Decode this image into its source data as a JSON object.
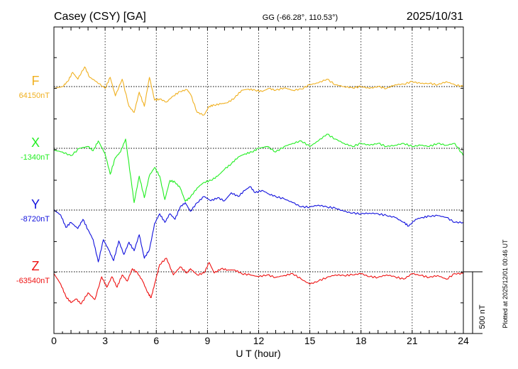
{
  "header": {
    "station": "Casey (CSY)  [GA]",
    "coords": "GG (-66.28°, 110.53°)",
    "date": "2025/10/31"
  },
  "footer": {
    "plotted": "Plotted at 2025/12/01 00:46 UT"
  },
  "chart_data": {
    "type": "line",
    "xlabel": "U T (hour)",
    "xlim": [
      0,
      24
    ],
    "xticks": [
      0,
      3,
      6,
      9,
      12,
      15,
      18,
      21,
      24
    ],
    "scale_label": "500 nT",
    "scale_nT": 500,
    "series": [
      {
        "name": "F",
        "baseline": "64150nT",
        "color": "#f0b020",
        "points": [
          [
            0,
            -15
          ],
          [
            0.5,
            0
          ],
          [
            0.8,
            40
          ],
          [
            1.1,
            115
          ],
          [
            1.4,
            60
          ],
          [
            1.8,
            160
          ],
          [
            2.1,
            75
          ],
          [
            2.5,
            40
          ],
          [
            3.0,
            -15
          ],
          [
            3.3,
            75
          ],
          [
            3.6,
            -75
          ],
          [
            4.0,
            60
          ],
          [
            4.4,
            -160
          ],
          [
            4.7,
            -210
          ],
          [
            5.0,
            -45
          ],
          [
            5.3,
            -160
          ],
          [
            5.6,
            75
          ],
          [
            5.9,
            -110
          ],
          [
            6.2,
            -100
          ],
          [
            6.6,
            -125
          ],
          [
            7.0,
            -75
          ],
          [
            7.4,
            -40
          ],
          [
            7.8,
            -25
          ],
          [
            8.0,
            -60
          ],
          [
            8.4,
            -210
          ],
          [
            8.8,
            -230
          ],
          [
            9.1,
            -160
          ],
          [
            9.4,
            -150
          ],
          [
            9.8,
            -140
          ],
          [
            10.2,
            -130
          ],
          [
            10.6,
            -90
          ],
          [
            11.0,
            -30
          ],
          [
            11.4,
            -20
          ],
          [
            11.8,
            -30
          ],
          [
            12.2,
            -40
          ],
          [
            12.6,
            -15
          ],
          [
            13.0,
            -30
          ],
          [
            13.5,
            -10
          ],
          [
            14.0,
            -30
          ],
          [
            14.5,
            -20
          ],
          [
            15.0,
            15
          ],
          [
            15.5,
            30
          ],
          [
            16.0,
            60
          ],
          [
            16.5,
            15
          ],
          [
            17.0,
            0
          ],
          [
            17.5,
            -10
          ],
          [
            18.0,
            0
          ],
          [
            18.5,
            -15
          ],
          [
            19.0,
            0
          ],
          [
            19.5,
            -15
          ],
          [
            20.0,
            15
          ],
          [
            20.5,
            20
          ],
          [
            21.0,
            40
          ],
          [
            21.5,
            25
          ],
          [
            22.0,
            25
          ],
          [
            22.5,
            15
          ],
          [
            23.0,
            40
          ],
          [
            23.5,
            15
          ],
          [
            24.0,
            0
          ]
        ]
      },
      {
        "name": "X",
        "baseline": "-1340nT",
        "color": "#22ee22",
        "points": [
          [
            0,
            -15
          ],
          [
            0.5,
            -30
          ],
          [
            1.0,
            -60
          ],
          [
            1.5,
            0
          ],
          [
            2.0,
            15
          ],
          [
            2.3,
            -20
          ],
          [
            2.6,
            60
          ],
          [
            3.0,
            -45
          ],
          [
            3.3,
            -210
          ],
          [
            3.6,
            -75
          ],
          [
            3.9,
            -30
          ],
          [
            4.2,
            75
          ],
          [
            4.5,
            -230
          ],
          [
            4.7,
            -440
          ],
          [
            5.0,
            -225
          ],
          [
            5.3,
            -400
          ],
          [
            5.6,
            -220
          ],
          [
            5.9,
            -155
          ],
          [
            6.2,
            -225
          ],
          [
            6.5,
            -415
          ],
          [
            6.8,
            -260
          ],
          [
            7.1,
            -275
          ],
          [
            7.4,
            -320
          ],
          [
            7.7,
            -430
          ],
          [
            8.0,
            -395
          ],
          [
            8.4,
            -320
          ],
          [
            8.8,
            -275
          ],
          [
            9.2,
            -260
          ],
          [
            9.6,
            -225
          ],
          [
            10.0,
            -170
          ],
          [
            10.4,
            -125
          ],
          [
            10.8,
            -70
          ],
          [
            11.2,
            -45
          ],
          [
            11.6,
            -30
          ],
          [
            12.0,
            0
          ],
          [
            12.5,
            15
          ],
          [
            13.0,
            -30
          ],
          [
            13.5,
            15
          ],
          [
            14.0,
            40
          ],
          [
            14.5,
            60
          ],
          [
            15.0,
            15
          ],
          [
            15.5,
            60
          ],
          [
            16.0,
            115
          ],
          [
            16.5,
            75
          ],
          [
            17.0,
            40
          ],
          [
            17.5,
            15
          ],
          [
            18.0,
            40
          ],
          [
            18.5,
            25
          ],
          [
            19.0,
            40
          ],
          [
            19.5,
            15
          ],
          [
            20.0,
            25
          ],
          [
            20.5,
            40
          ],
          [
            21.0,
            15
          ],
          [
            21.5,
            25
          ],
          [
            22.0,
            15
          ],
          [
            22.5,
            40
          ],
          [
            23.0,
            25
          ],
          [
            23.5,
            40
          ],
          [
            24.0,
            -60
          ]
        ]
      },
      {
        "name": "Y",
        "baseline": "-8720nT",
        "color": "#1111dd",
        "points": [
          [
            0,
            0
          ],
          [
            0.4,
            -40
          ],
          [
            0.7,
            -140
          ],
          [
            1.0,
            -100
          ],
          [
            1.4,
            -150
          ],
          [
            1.7,
            -75
          ],
          [
            2.0,
            -160
          ],
          [
            2.3,
            -240
          ],
          [
            2.6,
            -420
          ],
          [
            2.9,
            -240
          ],
          [
            3.2,
            -320
          ],
          [
            3.5,
            -410
          ],
          [
            3.8,
            -250
          ],
          [
            4.1,
            -360
          ],
          [
            4.4,
            -260
          ],
          [
            4.7,
            -330
          ],
          [
            5.0,
            -200
          ],
          [
            5.3,
            -390
          ],
          [
            5.6,
            -320
          ],
          [
            5.9,
            -110
          ],
          [
            6.2,
            -30
          ],
          [
            6.5,
            -100
          ],
          [
            6.8,
            -30
          ],
          [
            7.1,
            -75
          ],
          [
            7.4,
            25
          ],
          [
            7.7,
            60
          ],
          [
            8.0,
            -10
          ],
          [
            8.4,
            60
          ],
          [
            8.8,
            110
          ],
          [
            9.2,
            75
          ],
          [
            9.6,
            100
          ],
          [
            10.0,
            75
          ],
          [
            10.4,
            140
          ],
          [
            10.8,
            110
          ],
          [
            11.2,
            160
          ],
          [
            11.5,
            190
          ],
          [
            11.8,
            140
          ],
          [
            12.2,
            160
          ],
          [
            12.6,
            130
          ],
          [
            13.0,
            110
          ],
          [
            13.5,
            90
          ],
          [
            14.0,
            60
          ],
          [
            14.5,
            25
          ],
          [
            15.0,
            25
          ],
          [
            15.5,
            40
          ],
          [
            16.0,
            25
          ],
          [
            16.5,
            15
          ],
          [
            17.0,
            -10
          ],
          [
            17.5,
            -25
          ],
          [
            18.0,
            -30
          ],
          [
            18.5,
            -25
          ],
          [
            19.0,
            -30
          ],
          [
            19.5,
            -45
          ],
          [
            20.0,
            -60
          ],
          [
            20.5,
            -100
          ],
          [
            20.8,
            -130
          ],
          [
            21.2,
            -75
          ],
          [
            21.6,
            -60
          ],
          [
            22.0,
            -50
          ],
          [
            22.5,
            -45
          ],
          [
            23.0,
            -60
          ],
          [
            23.5,
            -100
          ],
          [
            24.0,
            -100
          ]
        ]
      },
      {
        "name": "Z",
        "baseline": "-63540nT",
        "color": "#ee1111",
        "points": [
          [
            0,
            -15
          ],
          [
            0.4,
            -100
          ],
          [
            0.7,
            -200
          ],
          [
            1.0,
            -250
          ],
          [
            1.3,
            -220
          ],
          [
            1.6,
            -260
          ],
          [
            2.0,
            -170
          ],
          [
            2.4,
            -225
          ],
          [
            2.8,
            -40
          ],
          [
            3.1,
            -125
          ],
          [
            3.4,
            -40
          ],
          [
            3.7,
            -125
          ],
          [
            4.0,
            -25
          ],
          [
            4.3,
            -75
          ],
          [
            4.6,
            25
          ],
          [
            4.9,
            -10
          ],
          [
            5.2,
            -75
          ],
          [
            5.5,
            -170
          ],
          [
            5.7,
            -210
          ],
          [
            5.9,
            -100
          ],
          [
            6.2,
            60
          ],
          [
            6.6,
            110
          ],
          [
            7.0,
            -25
          ],
          [
            7.4,
            40
          ],
          [
            7.8,
            -10
          ],
          [
            8.0,
            25
          ],
          [
            8.4,
            -25
          ],
          [
            8.8,
            -10
          ],
          [
            9.1,
            75
          ],
          [
            9.4,
            -10
          ],
          [
            9.8,
            25
          ],
          [
            10.2,
            15
          ],
          [
            10.6,
            15
          ],
          [
            11.0,
            -15
          ],
          [
            11.5,
            -25
          ],
          [
            12.0,
            -40
          ],
          [
            12.5,
            -25
          ],
          [
            13.0,
            -45
          ],
          [
            13.5,
            -30
          ],
          [
            14.0,
            -15
          ],
          [
            14.5,
            -60
          ],
          [
            15.0,
            -100
          ],
          [
            15.5,
            -75
          ],
          [
            16.0,
            -45
          ],
          [
            16.5,
            -25
          ],
          [
            17.0,
            -30
          ],
          [
            17.5,
            -25
          ],
          [
            18.0,
            -15
          ],
          [
            18.5,
            -40
          ],
          [
            19.0,
            -45
          ],
          [
            19.5,
            -25
          ],
          [
            20.0,
            -40
          ],
          [
            20.5,
            -60
          ],
          [
            21.0,
            -15
          ],
          [
            21.5,
            -30
          ],
          [
            22.0,
            -45
          ],
          [
            22.5,
            -30
          ],
          [
            23.0,
            -60
          ],
          [
            23.5,
            -15
          ],
          [
            24.0,
            -15
          ]
        ]
      }
    ]
  }
}
